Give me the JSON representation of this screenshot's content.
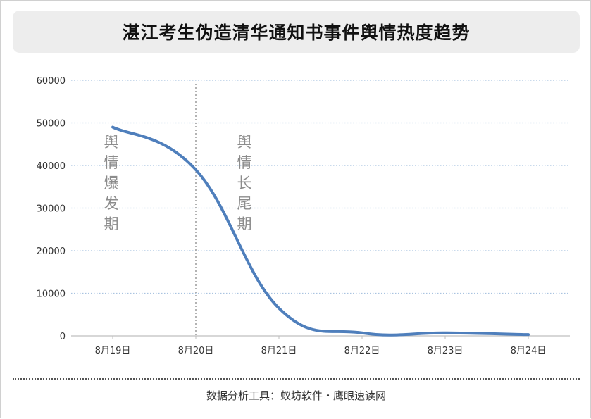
{
  "title": "湛江考生伪造清华通知书事件舆情热度趋势",
  "footer": "数据分析工具：蚁坊软件・鹰眼速读网",
  "colors": {
    "line": "#4f7fbc",
    "grid": "#a9c3e0",
    "axis": "#bfbfbf",
    "phase_text": "#8c8c8c",
    "tick_text": "#333333"
  },
  "chart_data": {
    "type": "line",
    "title": "湛江考生伪造清华通知书事件舆情热度趋势",
    "xlabel": "",
    "ylabel": "",
    "x": [
      "8月19日",
      "8月20日",
      "8月21日",
      "8月22日",
      "8月23日",
      "8月24日"
    ],
    "ylim": [
      0,
      60000
    ],
    "yticks": [
      0,
      10000,
      20000,
      30000,
      40000,
      50000,
      60000
    ],
    "grid": "horizontal-dotted",
    "smooth": true,
    "series": [
      {
        "values": [
          49000,
          39000,
          6500,
          700,
          700,
          300
        ]
      }
    ],
    "divider_after_x": "8月20日",
    "annotations": [
      {
        "text": "舆情爆发期",
        "position": "before-divider"
      },
      {
        "text": "舆情长尾期",
        "position": "after-divider"
      }
    ]
  }
}
